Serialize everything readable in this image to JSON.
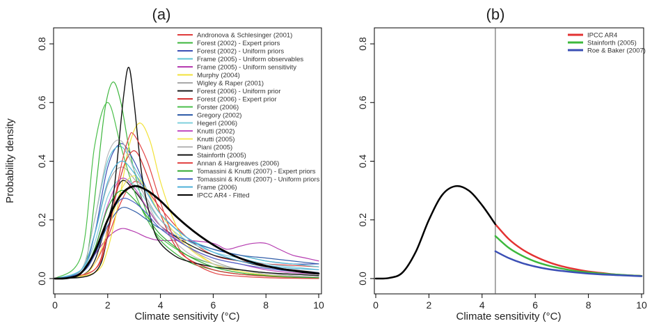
{
  "chart_data": [
    {
      "type": "line",
      "title": "(a)",
      "xlabel": "Climate sensitivity (°C)",
      "ylabel": "Probability density",
      "xlim": [
        0,
        10
      ],
      "ylim": [
        0,
        0.8
      ],
      "xticks": [
        "0",
        "2",
        "4",
        "6",
        "8",
        "10"
      ],
      "yticks": [
        "0.0",
        "0.2",
        "0.4",
        "0.6",
        "0.8"
      ],
      "legend_position": "top-right",
      "series": [
        {
          "name": "Andronova & Schlesinger (2001)",
          "color": "#e03b3b",
          "width": 1.2,
          "x": [
            0,
            1,
            1.5,
            2,
            2.5,
            3,
            3.5,
            4,
            5,
            6,
            7,
            8,
            9,
            10
          ],
          "y": [
            0,
            0.01,
            0.05,
            0.14,
            0.26,
            0.33,
            0.3,
            0.24,
            0.14,
            0.08,
            0.06,
            0.05,
            0.045,
            0.04
          ]
        },
        {
          "name": "Forest (2002) - Expert priors",
          "color": "#3bb53b",
          "width": 1.2,
          "x": [
            0,
            1,
            1.3,
            1.6,
            1.9,
            2.2,
            2.5,
            2.8,
            3.2,
            3.6,
            4,
            5,
            6,
            7,
            8,
            9,
            10
          ],
          "y": [
            0,
            0.02,
            0.12,
            0.35,
            0.58,
            0.67,
            0.6,
            0.45,
            0.3,
            0.2,
            0.13,
            0.06,
            0.03,
            0.015,
            0.01,
            0.005,
            0.003
          ]
        },
        {
          "name": "Forest (2002) - Uniform priors",
          "color": "#3b4fb5",
          "width": 1.2,
          "x": [
            0,
            1,
            1.5,
            2,
            2.5,
            3,
            3.5,
            4,
            5,
            6,
            7,
            8,
            9,
            10
          ],
          "y": [
            0,
            0.02,
            0.15,
            0.38,
            0.46,
            0.4,
            0.3,
            0.22,
            0.14,
            0.1,
            0.08,
            0.06,
            0.05,
            0.05
          ]
        },
        {
          "name": "Frame (2005) - Uniform observables",
          "color": "#5ec4d4",
          "width": 1.2,
          "x": [
            0,
            1,
            1.5,
            2,
            2.5,
            3,
            3.5,
            4,
            5,
            6,
            7,
            8,
            9,
            10
          ],
          "y": [
            0,
            0.03,
            0.2,
            0.4,
            0.45,
            0.38,
            0.3,
            0.22,
            0.14,
            0.1,
            0.08,
            0.06,
            0.05,
            0.04
          ]
        },
        {
          "name": "Frame (2005) - Uniform sensitivity",
          "color": "#b53bb0",
          "width": 1.2,
          "x": [
            0,
            1,
            1.5,
            2,
            2.5,
            3,
            3.5,
            4,
            5,
            6,
            6.5,
            7,
            7.5,
            8,
            8.5,
            9,
            9.5,
            10
          ],
          "y": [
            0,
            0.02,
            0.08,
            0.14,
            0.17,
            0.16,
            0.14,
            0.13,
            0.13,
            0.12,
            0.1,
            0.11,
            0.12,
            0.12,
            0.1,
            0.08,
            0.07,
            0.06
          ]
        },
        {
          "name": "Murphy (2004)",
          "color": "#f2e23a",
          "width": 1.2,
          "x": [
            0,
            1.5,
            2,
            2.5,
            2.8,
            3.2,
            3.6,
            4,
            4.5,
            5,
            6,
            7,
            8,
            9,
            10
          ],
          "y": [
            0,
            0.02,
            0.1,
            0.3,
            0.45,
            0.53,
            0.47,
            0.33,
            0.2,
            0.12,
            0.05,
            0.025,
            0.012,
            0.006,
            0.003
          ]
        },
        {
          "name": "Wigley & Raper (2001)",
          "color": "#a8a8a8",
          "width": 1.2,
          "x": [
            0,
            1,
            1.5,
            2,
            2.5,
            3,
            3.5,
            4,
            5,
            6,
            7,
            8,
            9,
            10
          ],
          "y": [
            0,
            0.03,
            0.15,
            0.32,
            0.38,
            0.34,
            0.27,
            0.2,
            0.11,
            0.06,
            0.03,
            0.02,
            0.01,
            0.005
          ]
        },
        {
          "name": "Forest (2006) - Uniform prior",
          "color": "#1a1a1a",
          "width": 1.3,
          "x": [
            0,
            1,
            1.5,
            2,
            2.5,
            3,
            3.5,
            4,
            5,
            6,
            7,
            8,
            9,
            10
          ],
          "y": [
            0,
            0.01,
            0.06,
            0.2,
            0.33,
            0.3,
            0.24,
            0.18,
            0.12,
            0.08,
            0.06,
            0.04,
            0.03,
            0.02
          ]
        },
        {
          "name": "Forest (2006) - Expert prior",
          "color": "#d42f2f",
          "width": 1.2,
          "x": [
            0,
            1.5,
            2,
            2.5,
            2.8,
            3.1,
            3.5,
            4,
            4.5,
            5,
            6,
            7,
            8,
            9,
            10
          ],
          "y": [
            0,
            0.03,
            0.17,
            0.35,
            0.42,
            0.43,
            0.35,
            0.22,
            0.12,
            0.07,
            0.03,
            0.015,
            0.008,
            0.004,
            0.002
          ]
        },
        {
          "name": "Forster (2006)",
          "color": "#4bbf4b",
          "width": 1.2,
          "x": [
            0,
            1,
            1.5,
            2,
            2.5,
            3,
            3.5,
            4,
            5,
            6,
            7,
            8,
            9,
            10
          ],
          "y": [
            0,
            0.08,
            0.45,
            0.6,
            0.45,
            0.3,
            0.2,
            0.14,
            0.08,
            0.05,
            0.03,
            0.02,
            0.015,
            0.01
          ]
        },
        {
          "name": "Gregory (2002)",
          "color": "#2f5ca8",
          "width": 1.2,
          "x": [
            0,
            1,
            1.5,
            2,
            2.5,
            3,
            3.5,
            4,
            5,
            6,
            7,
            8,
            9,
            10
          ],
          "y": [
            0,
            0.02,
            0.08,
            0.18,
            0.24,
            0.23,
            0.2,
            0.17,
            0.13,
            0.1,
            0.08,
            0.07,
            0.06,
            0.05
          ]
        },
        {
          "name": "Hegerl (2006)",
          "color": "#7fd0dc",
          "width": 1.2,
          "x": [
            0,
            1,
            1.5,
            2,
            2.5,
            3,
            3.5,
            4,
            5,
            6,
            7,
            8,
            9,
            10
          ],
          "y": [
            0,
            0.03,
            0.12,
            0.28,
            0.34,
            0.32,
            0.26,
            0.2,
            0.13,
            0.09,
            0.07,
            0.05,
            0.04,
            0.03
          ]
        },
        {
          "name": "Knutti (2002)",
          "color": "#c24fc2",
          "width": 1.2,
          "x": [
            0,
            1,
            1.5,
            2,
            2.5,
            3,
            3.5,
            4,
            5,
            6,
            7,
            8,
            9,
            10
          ],
          "y": [
            0,
            0.02,
            0.1,
            0.25,
            0.34,
            0.31,
            0.24,
            0.18,
            0.11,
            0.07,
            0.05,
            0.03,
            0.02,
            0.015
          ]
        },
        {
          "name": "Knutti (2005)",
          "color": "#f5e85a",
          "width": 1.2,
          "x": [
            0,
            1,
            1.5,
            2,
            2.5,
            3,
            3.5,
            4,
            5,
            6,
            7,
            8,
            9,
            10
          ],
          "y": [
            0,
            0.01,
            0.05,
            0.16,
            0.3,
            0.35,
            0.3,
            0.22,
            0.11,
            0.05,
            0.025,
            0.012,
            0.006,
            0.003
          ]
        },
        {
          "name": "Piani (2005)",
          "color": "#b8b8b8",
          "width": 1.2,
          "x": [
            0,
            1,
            1.5,
            2,
            2.5,
            3,
            3.5,
            4,
            5,
            6,
            7,
            8,
            9,
            10
          ],
          "y": [
            0,
            0.03,
            0.2,
            0.42,
            0.47,
            0.37,
            0.26,
            0.18,
            0.09,
            0.05,
            0.03,
            0.015,
            0.008,
            0.004
          ]
        },
        {
          "name": "Stainforth (2005)",
          "color": "#111111",
          "width": 1.4,
          "x": [
            0,
            1.5,
            2,
            2.3,
            2.6,
            2.8,
            3,
            3.3,
            3.7,
            4,
            4.5,
            5,
            6,
            7,
            8,
            9,
            10
          ],
          "y": [
            0,
            0.02,
            0.15,
            0.35,
            0.62,
            0.72,
            0.6,
            0.35,
            0.18,
            0.12,
            0.08,
            0.06,
            0.04,
            0.03,
            0.02,
            0.015,
            0.01
          ]
        },
        {
          "name": "Annan & Hargreaves (2006)",
          "color": "#e24545",
          "width": 1.2,
          "x": [
            0,
            1.5,
            2,
            2.5,
            2.8,
            3,
            3.5,
            4,
            4.5,
            5,
            6,
            7,
            8,
            9,
            10
          ],
          "y": [
            0,
            0.03,
            0.15,
            0.38,
            0.48,
            0.49,
            0.4,
            0.26,
            0.14,
            0.07,
            0.02,
            0.008,
            0.003,
            0.001,
            0
          ]
        },
        {
          "name": "Tomassini & Knutti (2007) - Expert priors",
          "color": "#2fa82f",
          "width": 1.2,
          "x": [
            0,
            1,
            1.5,
            2,
            2.5,
            3,
            3.5,
            4,
            5,
            6,
            7,
            8,
            9,
            10
          ],
          "y": [
            0,
            0.02,
            0.1,
            0.24,
            0.3,
            0.27,
            0.21,
            0.15,
            0.08,
            0.04,
            0.02,
            0.01,
            0.005,
            0.003
          ]
        },
        {
          "name": "Tomassini & Knutti (2007) - Uniform priors",
          "color": "#4a63c4",
          "width": 1.2,
          "x": [
            0,
            1,
            1.5,
            2,
            2.5,
            3,
            3.5,
            4,
            5,
            6,
            7,
            8,
            9,
            10
          ],
          "y": [
            0,
            0.02,
            0.08,
            0.2,
            0.27,
            0.26,
            0.22,
            0.17,
            0.11,
            0.07,
            0.05,
            0.035,
            0.025,
            0.02
          ]
        },
        {
          "name": "Frame (2006)",
          "color": "#4fb0d8",
          "width": 1.2,
          "x": [
            0,
            1,
            1.5,
            2,
            2.5,
            3,
            3.5,
            4,
            5,
            6,
            7,
            8,
            9,
            10
          ],
          "y": [
            0,
            0.03,
            0.15,
            0.33,
            0.4,
            0.36,
            0.29,
            0.22,
            0.14,
            0.09,
            0.06,
            0.045,
            0.035,
            0.03
          ]
        },
        {
          "name": "IPCC AR4 - Fitted",
          "color": "#000000",
          "width": 2.8,
          "x": [
            0,
            0.5,
            1,
            1.5,
            2,
            2.5,
            3,
            3.5,
            4,
            4.5,
            5,
            5.5,
            6,
            6.5,
            7,
            7.5,
            8,
            8.5,
            9,
            9.5,
            10
          ],
          "y": [
            0,
            0.002,
            0.02,
            0.09,
            0.2,
            0.285,
            0.315,
            0.3,
            0.265,
            0.22,
            0.18,
            0.145,
            0.115,
            0.09,
            0.07,
            0.055,
            0.043,
            0.034,
            0.027,
            0.021,
            0.017
          ]
        }
      ]
    },
    {
      "type": "line",
      "title": "(b)",
      "xlabel": "Climate sensitivity (°C)",
      "ylabel": "",
      "xlim": [
        0,
        10
      ],
      "ylim": [
        0,
        0.8
      ],
      "xticks": [
        "0",
        "2",
        "4",
        "6",
        "8",
        "10"
      ],
      "yticks": [
        "0.0",
        "0.2",
        "0.4",
        "0.6",
        "0.8"
      ],
      "vline": 4.5,
      "legend_position": "top-right",
      "series": [
        {
          "name": "IPCC AR4",
          "color": "#e33232",
          "width": 2.5,
          "x": [
            4.5,
            5,
            5.5,
            6,
            6.5,
            7,
            7.5,
            8,
            8.5,
            9,
            9.5,
            10
          ],
          "y": [
            0.185,
            0.135,
            0.1,
            0.075,
            0.056,
            0.042,
            0.032,
            0.024,
            0.019,
            0.014,
            0.011,
            0.009
          ]
        },
        {
          "name": "Stainforth (2005)",
          "color": "#3cb83c",
          "width": 2.5,
          "x": [
            4.5,
            5,
            5.5,
            6,
            6.5,
            7,
            7.5,
            8,
            8.5,
            9,
            9.5,
            10
          ],
          "y": [
            0.145,
            0.105,
            0.078,
            0.058,
            0.044,
            0.034,
            0.026,
            0.021,
            0.017,
            0.014,
            0.011,
            0.009
          ]
        },
        {
          "name": "Roe & Baker (2007)",
          "color": "#3b4fb5",
          "width": 2.5,
          "x": [
            4.5,
            5,
            5.5,
            6,
            6.5,
            7,
            7.5,
            8,
            8.5,
            9,
            9.5,
            10
          ],
          "y": [
            0.093,
            0.07,
            0.053,
            0.041,
            0.032,
            0.026,
            0.021,
            0.017,
            0.014,
            0.012,
            0.01,
            0.008
          ]
        },
        {
          "color": "#000000",
          "width": 2.5,
          "x": [
            0,
            0.5,
            1,
            1.5,
            2,
            2.5,
            3,
            3.5,
            4,
            4.5
          ],
          "y": [
            0,
            0.002,
            0.02,
            0.09,
            0.2,
            0.285,
            0.315,
            0.3,
            0.25,
            0.185
          ]
        }
      ]
    }
  ]
}
